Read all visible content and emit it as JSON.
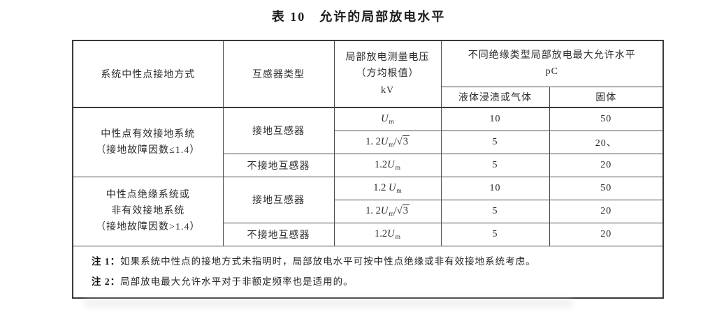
{
  "caption": "表 10　允许的局部放电水平",
  "table": {
    "headers": {
      "system": "系统中性点接地方式",
      "transformer_type": "互感器类型",
      "voltage": "局部放电测量电压\n（方均根值）\nkV",
      "pd_max": "不同绝缘类型局部放电最大允许水平\npC",
      "liquid_gas": "液体浸渍或气体",
      "solid": "固体"
    },
    "groups": [
      {
        "system": "中性点有效接地系统\n（接地故障因数≤1.4）"
      },
      {
        "system": "中性点绝缘系统或\n非有效接地系统\n（接地故障因数>1.4）"
      }
    ],
    "rows": [
      {
        "type": "接地互感器",
        "voltage": "U_m",
        "liquid": "10",
        "solid": "50"
      },
      {
        "voltage": "1. 2U_m/√3",
        "liquid": "5",
        "solid": "20、"
      },
      {
        "type": "不接地互感器",
        "voltage": "1.2U_m",
        "liquid": "5",
        "solid": "20"
      },
      {
        "type": "接地互感器",
        "voltage": "1.2 U_m",
        "liquid": "10",
        "solid": "50"
      },
      {
        "voltage": "1. 2U_m/√3",
        "liquid": "5",
        "solid": "20"
      },
      {
        "type": "不接地互感器",
        "voltage": "1.2U_m",
        "liquid": "5",
        "solid": "20"
      }
    ],
    "notes": [
      {
        "label": "注 1：",
        "text": "如果系统中性点的接地方式未指明时，局部放电水平可按中性点绝缘或非有效接地系统考虑。"
      },
      {
        "label": "注 2：",
        "text": "局部放电最大允许水平对于非额定频率也是适用的。"
      }
    ]
  }
}
